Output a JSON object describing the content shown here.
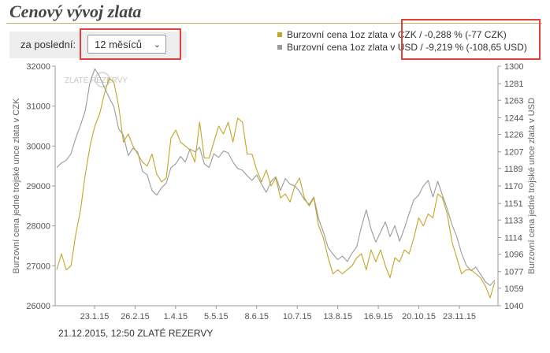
{
  "page": {
    "title": "Cenový vývoj zlata",
    "period_label": "za poslední:",
    "period_selected": "12 měsíců",
    "footer": "21.12.2015, 12:50 ZLATÉ REZERVY"
  },
  "icons": {
    "dropdown": "chevron-down-icon"
  },
  "colors": {
    "czk": "#c2a526",
    "usd": "#9a9a9a",
    "rule": "#c9b56a",
    "highlight": "#e3403a"
  },
  "chart_data": {
    "type": "line",
    "watermark": "ZLATÉ REZERVY",
    "x_ticks": [
      "23.1.15",
      "26.2.15",
      "1.4.15",
      "5.5.15",
      "8.6.15",
      "10.7.15",
      "13.8.15",
      "16.9.15",
      "20.10.15",
      "23.11.15"
    ],
    "ylabel_left": "Burzovní cena jedné trojské unce zlata v CZK",
    "ylabel_right": "Burzovní cena jedné trojské unce zlata v USD",
    "y_left": {
      "ticks": [
        26000,
        27000,
        28000,
        29000,
        30000,
        31000,
        32000
      ],
      "range": [
        26000,
        32000
      ]
    },
    "y_right": {
      "ticks": [
        1040,
        1059,
        1077,
        1096,
        1114,
        1133,
        1151,
        1170,
        1189,
        1207,
        1226,
        1244,
        1263,
        1281,
        1300
      ],
      "range": [
        1040,
        1300
      ]
    },
    "grid": false,
    "legend_position": "top-right",
    "series": [
      {
        "name": "Burzovní cena 1oz zlata v CZK",
        "change": "-0,288 % (-77 CZK)",
        "axis": "left",
        "values": [
          26900,
          27300,
          26900,
          27000,
          27800,
          28400,
          29300,
          30000,
          30500,
          30800,
          31300,
          31700,
          31600,
          31000,
          30100,
          30300,
          30000,
          29800,
          29600,
          29500,
          29800,
          29300,
          29100,
          29200,
          30200,
          30400,
          30100,
          30000,
          29900,
          29600,
          30600,
          29700,
          29700,
          30100,
          30500,
          30300,
          30600,
          30100,
          30700,
          30600,
          29800,
          29800,
          29400,
          29100,
          29400,
          29000,
          29200,
          28700,
          28800,
          28600,
          29000,
          29200,
          28700,
          28500,
          28700,
          28000,
          27700,
          27200,
          26800,
          26900,
          26800,
          26900,
          27000,
          27200,
          27300,
          26900,
          27400,
          27100,
          27400,
          27000,
          26700,
          27200,
          27100,
          27400,
          27300,
          27700,
          28200,
          28000,
          28300,
          28200,
          28800,
          28700,
          28300,
          27600,
          27200,
          26800,
          26900,
          26900,
          26800,
          26700,
          26500,
          26200,
          26600
        ]
      },
      {
        "name": "Burzovní cena 1oz zlata v USD",
        "change": "-9,219 % (-108,65 USD)",
        "axis": "right",
        "values": [
          1190,
          1195,
          1198,
          1205,
          1222,
          1236,
          1252,
          1283,
          1297,
          1289,
          1277,
          1266,
          1256,
          1232,
          1225,
          1203,
          1211,
          1207,
          1186,
          1182,
          1165,
          1160,
          1168,
          1173,
          1190,
          1194,
          1202,
          1196,
          1210,
          1207,
          1212,
          1194,
          1190,
          1205,
          1201,
          1208,
          1206,
          1196,
          1189,
          1187,
          1181,
          1176,
          1182,
          1172,
          1163,
          1175,
          1180,
          1165,
          1178,
          1172,
          1170,
          1164,
          1155,
          1150,
          1158,
          1134,
          1120,
          1103,
          1096,
          1090,
          1094,
          1088,
          1097,
          1104,
          1126,
          1144,
          1123,
          1109,
          1120,
          1131,
          1115,
          1127,
          1110,
          1124,
          1140,
          1155,
          1160,
          1170,
          1176,
          1158,
          1175,
          1160,
          1145,
          1128,
          1115,
          1097,
          1084,
          1078,
          1082,
          1074,
          1066,
          1062,
          1068
        ]
      }
    ]
  }
}
